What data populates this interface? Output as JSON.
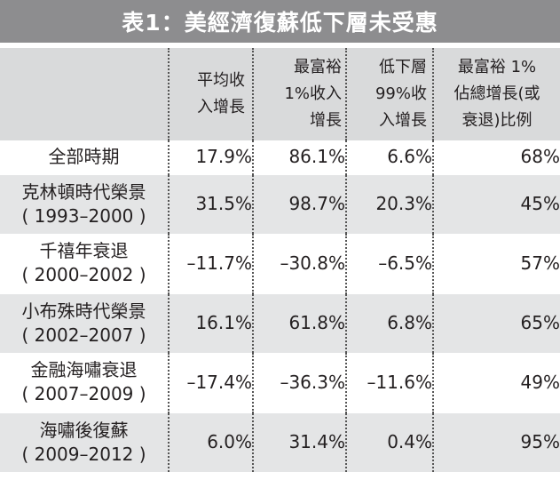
{
  "title": "表1：美經濟復蘇低下層未受惠",
  "headers": [
    "",
    [
      "平均收",
      "入增長"
    ],
    [
      "最富裕",
      "1%收入",
      "增長"
    ],
    [
      "低下層",
      "99%收",
      "入增長"
    ],
    [
      "最富裕 1%",
      "佔總增長(或",
      "衰退)比例"
    ]
  ],
  "rows": [
    {
      "label": [
        "全部時期"
      ],
      "avg": "17.9%",
      "top1": "86.1%",
      "bottom99": "6.6%",
      "share": "68%"
    },
    {
      "label": [
        "克林頓時代榮景",
        "( 1993–2000 )"
      ],
      "avg": "31.5%",
      "top1": "98.7%",
      "bottom99": "20.3%",
      "share": "45%"
    },
    {
      "label": [
        "千禧年衰退",
        "( 2000–2002 )"
      ],
      "avg": "–11.7%",
      "top1": "–30.8%",
      "bottom99": "–6.5%",
      "share": "57%"
    },
    {
      "label": [
        "小布殊時代榮景",
        "( 2002–2007 )"
      ],
      "avg": "16.1%",
      "top1": "61.8%",
      "bottom99": "6.8%",
      "share": "65%"
    },
    {
      "label": [
        "金融海嘯衰退",
        "( 2007–2009 )"
      ],
      "avg": "–17.4%",
      "top1": "–36.3%",
      "bottom99": "–11.6%",
      "share": "49%"
    },
    {
      "label": [
        "海嘯後復蘇",
        "( 2009–2012 )"
      ],
      "avg": "6.0%",
      "top1": "31.4%",
      "bottom99": "0.4%",
      "share": "95%"
    }
  ]
}
